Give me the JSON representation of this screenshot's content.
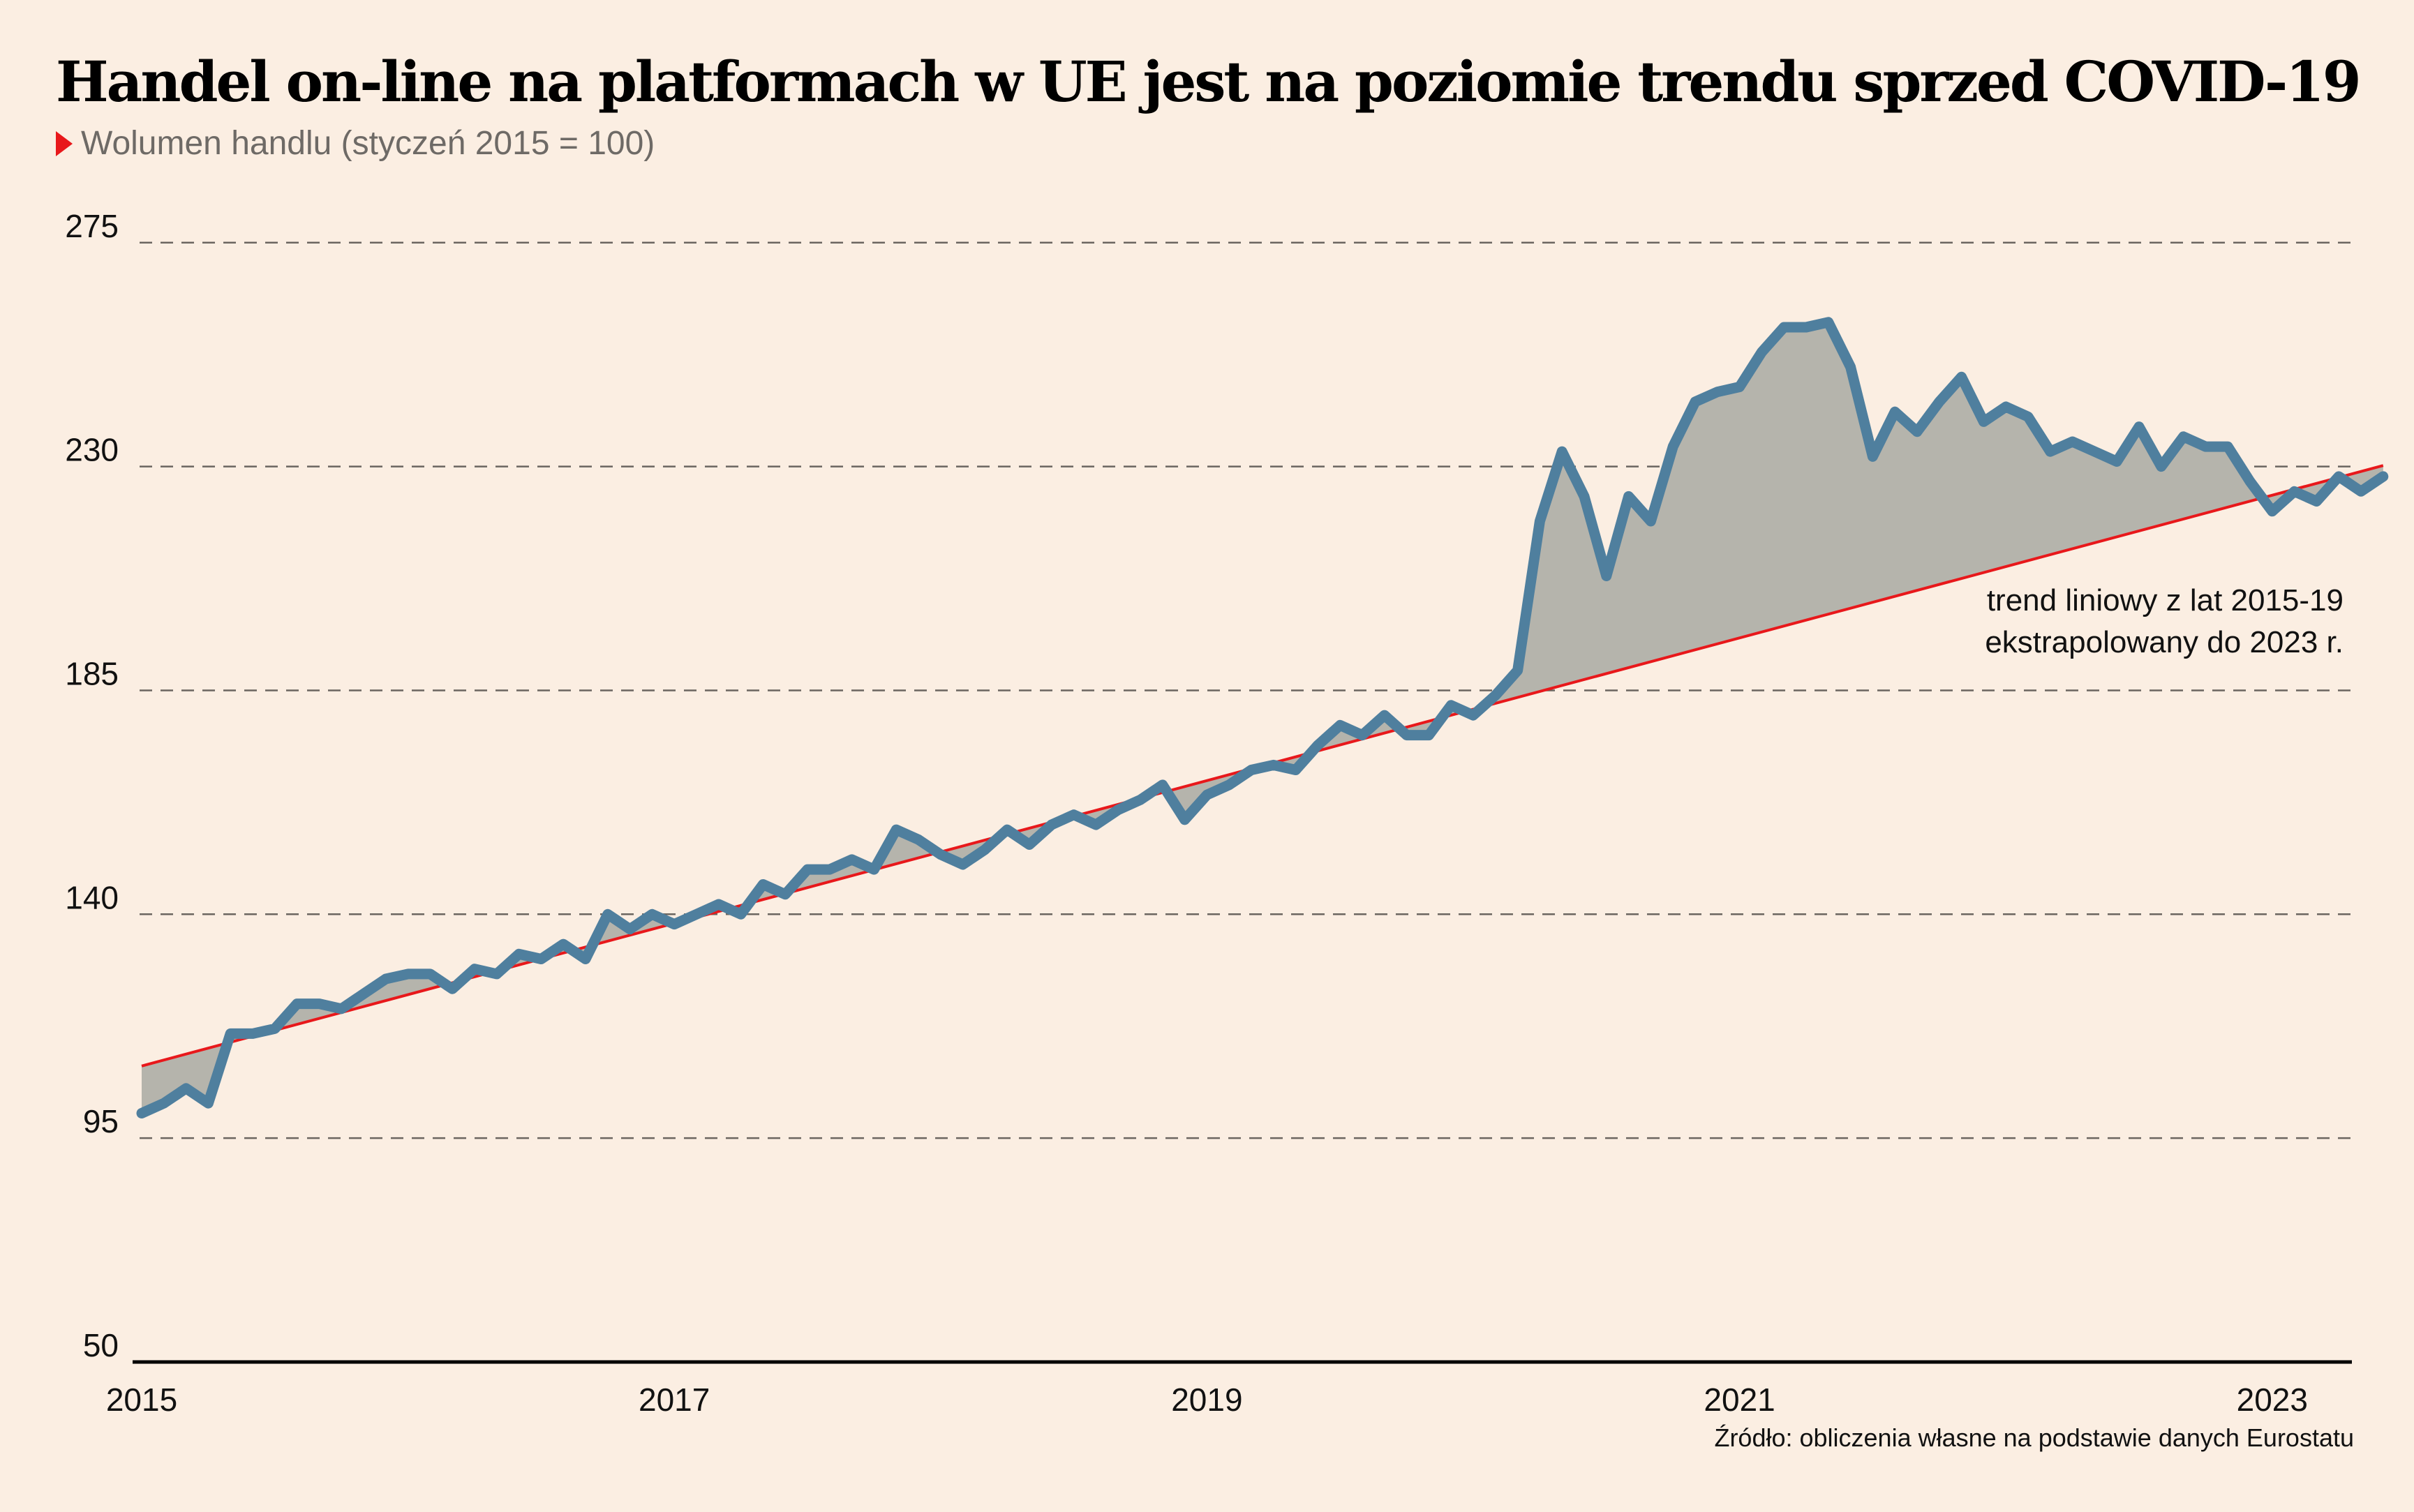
{
  "title": "Handel on-line na platformach w UE jest na poziomie trendu sprzed COVID-19",
  "subtitle": "Wolumen handlu (styczeń 2015 = 100)",
  "source": "Źródło: obliczenia własne na podstawie danych Eurostatu",
  "colors": {
    "background": "#FBEEE2",
    "series": "#4F7F9E",
    "trend": "#E8181B",
    "fill": "#B5B4AC",
    "grid": "#6B6560",
    "marker": "#E8181B"
  },
  "chart_data": {
    "type": "line",
    "title": "Handel on-line na platformach w UE jest na poziomie trendu sprzed COVID-19",
    "ylabel": "Wolumen handlu (styczeń 2015 = 100)",
    "xlabel": "",
    "ylim": [
      50,
      275
    ],
    "yticks": [
      50,
      95,
      140,
      185,
      230,
      275
    ],
    "xlim_months": [
      0,
      101
    ],
    "xticks": [
      {
        "label": "2015",
        "month": 0
      },
      {
        "label": "2017",
        "month": 24
      },
      {
        "label": "2019",
        "month": 48
      },
      {
        "label": "2021",
        "month": 72
      },
      {
        "label": "2023",
        "month": 96
      }
    ],
    "grid": true,
    "x_start": "2015-01",
    "frequency": "monthly",
    "series": [
      {
        "name": "Wolumen handlu",
        "values": [
          100,
          102,
          105,
          102,
          116,
          116,
          117,
          122,
          122,
          121,
          124,
          127,
          128,
          128,
          125,
          129,
          128,
          132,
          131,
          134,
          131,
          140,
          137,
          140,
          138,
          140,
          142,
          140,
          146,
          144,
          149,
          149,
          151,
          149,
          157,
          155,
          152,
          150,
          153,
          157,
          154,
          158,
          160,
          158,
          161,
          163,
          166,
          159,
          164,
          166,
          169,
          170,
          169,
          174,
          178,
          176,
          180,
          176,
          176,
          182,
          180,
          184,
          189,
          219,
          233,
          224,
          208,
          224,
          219,
          234,
          243,
          245,
          246,
          253,
          258,
          258,
          259,
          250,
          232,
          241,
          237,
          243,
          248,
          239,
          242,
          240,
          233,
          235,
          233,
          231,
          238,
          230,
          236,
          234,
          234,
          227,
          221,
          225,
          223,
          228,
          225,
          228
        ]
      },
      {
        "name": "trend liniowy z lat 2015-19 ekstrapolowany do 2023 r.",
        "type": "trend",
        "start": 109.5,
        "end": 230.2
      }
    ],
    "annotations": [
      {
        "text_lines": [
          "trend liniowy z lat 2015-19",
          "ekstrapolowany do 2023 r."
        ],
        "anchor": "right of trend line end"
      }
    ],
    "shading": "area between series and trend line"
  }
}
